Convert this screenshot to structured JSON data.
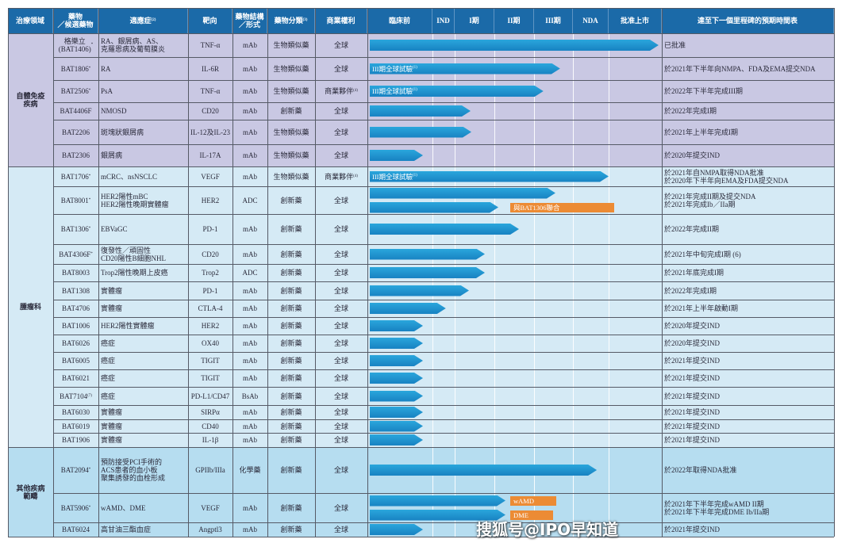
{
  "colors": {
    "header": "#1b6aa8",
    "autoimmune": "#c9c8e3",
    "oncology": "#d5eaf5",
    "other": "#b6ddf0",
    "bar": "#1f94d0",
    "tag": "#ec8b34"
  },
  "header": {
    "cols": [
      {
        "label": "治療領域",
        "sup": ""
      },
      {
        "label": "藥物\n／候選藥物",
        "sup": ""
      },
      {
        "label": "適應症",
        "sup": "(2)"
      },
      {
        "label": "靶向",
        "sup": ""
      },
      {
        "label": "藥物結構\n／形式",
        "sup": ""
      },
      {
        "label": "藥物分類",
        "sup": "(3)"
      },
      {
        "label": "商業權利",
        "sup": ""
      },
      {
        "label": "臨床前",
        "sup": ""
      },
      {
        "label": "IND",
        "sup": ""
      },
      {
        "label": "I期",
        "sup": ""
      },
      {
        "label": "II期",
        "sup": ""
      },
      {
        "label": "III期",
        "sup": ""
      },
      {
        "label": "NDA",
        "sup": ""
      },
      {
        "label": "批准上市",
        "sup": ""
      },
      {
        "label": "達至下一個里程碑的預期時間表",
        "sup": ""
      }
    ]
  },
  "groups": [
    {
      "area": "自體免疫\n疾病",
      "color_key": "autoimmune",
      "rows": [
        {
          "drug": "格樂立\n(BAT1406)",
          "sup": "*",
          "indication": "RA、銀屑病、AS、\n克羅恩病及葡萄膜炎",
          "target": "TNF-α",
          "structure": "mAb",
          "class": "生物類似藥",
          "rights": "全球",
          "rights_sup": "",
          "bars": [
            {
              "progress": 6.94,
              "label": "",
              "label_sup": ""
            }
          ],
          "tags": [],
          "timeline": "已批准"
        },
        {
          "drug": "BAT1806",
          "sup": "*",
          "indication": "RA",
          "target": "IL-6R",
          "structure": "mAb",
          "class": "生物類似藥",
          "rights": "全球",
          "rights_sup": "",
          "bars": [
            {
              "progress": 4.67,
              "label": "III期全球試驗",
              "label_sup": "(1)"
            }
          ],
          "tags": [],
          "timeline": "於2021年下半年向NMPA、FDA及EMA提交NDA"
        },
        {
          "drug": "BAT2506",
          "sup": "*",
          "indication": "PsA",
          "target": "TNF-α",
          "structure": "mAb",
          "class": "生物類似藥",
          "rights": "商業夥伴",
          "rights_sup": "(4)",
          "bars": [
            {
              "progress": 4.24,
              "label": "III期全球試驗",
              "label_sup": "(1)"
            }
          ],
          "tags": [],
          "timeline": "於2022年下半年完成III期"
        },
        {
          "drug": "BAT4406F",
          "sup": "",
          "indication": "NMOSD",
          "target": "CD20",
          "structure": "mAb",
          "class": "創新藥",
          "rights": "全球",
          "rights_sup": "",
          "bars": [
            {
              "progress": 2.4,
              "label": "",
              "label_sup": ""
            }
          ],
          "tags": [],
          "timeline": "於2022年完成I期"
        },
        {
          "drug": "BAT2206",
          "sup": "",
          "indication": "斑塊狀銀屑病",
          "target": "IL-12及IL-23",
          "structure": "mAb",
          "class": "生物類似藥",
          "rights": "全球",
          "rights_sup": "",
          "bars": [
            {
              "progress": 2.42,
              "label": "",
              "label_sup": ""
            }
          ],
          "tags": [],
          "timeline": "於2021年上半年完成I期"
        },
        {
          "drug": "BAT2306",
          "sup": "",
          "indication": "銀屑病",
          "target": "IL-17A",
          "structure": "mAb",
          "class": "生物類似藥",
          "rights": "全球",
          "rights_sup": "",
          "bars": [
            {
              "progress": 0.85,
              "label": "",
              "label_sup": ""
            }
          ],
          "tags": [],
          "timeline": "於2020年提交IND"
        }
      ]
    },
    {
      "area": "腫瘤科",
      "color_key": "oncology",
      "rows": [
        {
          "drug": "BAT1706",
          "sup": "*",
          "indication": "mCRC、nsNSCLC",
          "target": "VEGF",
          "structure": "mAb",
          "class": "生物類似藥",
          "rights": "商業夥伴",
          "rights_sup": "(4)",
          "bars": [
            {
              "progress": 6.0,
              "label": "III期全球試驗",
              "label_sup": "(1)"
            }
          ],
          "tags": [],
          "timeline": "於2021年自NMPA取得NDA批准\n於2020年下半年向EMA及FDA提交NDA"
        },
        {
          "drug": "BAT8001",
          "sup": "*",
          "indication": "HER2陽性mBC\nHER2陽性晚期實體瘤",
          "target": "HER2",
          "structure": "ADC",
          "class": "創新藥",
          "rights": "全球",
          "rights_sup": "",
          "bars": [
            {
              "progress": 4.55,
              "label": "",
              "label_sup": ""
            },
            {
              "progress": 3.1,
              "label": "",
              "label_sup": ""
            }
          ],
          "tags": [
            {
              "text": "與BAT1306聯合",
              "from": 3.4,
              "to": 6.1,
              "bar": 1
            }
          ],
          "timeline": "於2021年完成II期及提交NDA\n於2021年完成Ib／IIa期"
        },
        {
          "drug": "BAT1306",
          "sup": "*",
          "indication": "EBVaGC",
          "target": "PD-1",
          "structure": "mAb",
          "class": "創新藥",
          "rights": "全球",
          "rights_sup": "",
          "bars": [
            {
              "progress": 3.62,
              "label": "",
              "label_sup": ""
            }
          ],
          "tags": [],
          "timeline": "於2022年完成II期"
        },
        {
          "drug": "BAT4306F",
          "sup": "*",
          "indication": "復發性／頑固性\nCD20陽性B細胞NHL",
          "target": "CD20",
          "structure": "mAb",
          "class": "創新藥",
          "rights": "全球",
          "rights_sup": "",
          "bars": [
            {
              "progress": 2.76,
              "label": "",
              "label_sup": ""
            }
          ],
          "tags": [],
          "timeline": "於2021年中旬完成I期 (6)"
        },
        {
          "drug": "BAT8003",
          "sup": "",
          "indication": "Trop2陽性晚期上皮癌",
          "target": "Trop2",
          "structure": "ADC",
          "class": "創新藥",
          "rights": "全球",
          "rights_sup": "",
          "bars": [
            {
              "progress": 2.76,
              "label": "",
              "label_sup": ""
            }
          ],
          "tags": [],
          "timeline": "於2021年底完成I期"
        },
        {
          "drug": "BAT1308",
          "sup": "",
          "indication": "實體瘤",
          "target": "PD-1",
          "structure": "mAb",
          "class": "創新藥",
          "rights": "全球",
          "rights_sup": "",
          "bars": [
            {
              "progress": 2.36,
              "label": "",
              "label_sup": ""
            }
          ],
          "tags": [],
          "timeline": "於2022年完成I期"
        },
        {
          "drug": "BAT4706",
          "sup": "",
          "indication": "實體瘤",
          "target": "CTLA-4",
          "structure": "mAb",
          "class": "創新藥",
          "rights": "全球",
          "rights_sup": "",
          "bars": [
            {
              "progress": 1.6,
              "label": "",
              "label_sup": ""
            }
          ],
          "tags": [],
          "timeline": "於2021年上半年啟動I期"
        },
        {
          "drug": "BAT1006",
          "sup": "",
          "indication": "HER2陽性實體瘤",
          "target": "HER2",
          "structure": "mAb",
          "class": "創新藥",
          "rights": "全球",
          "rights_sup": "",
          "bars": [
            {
              "progress": 0.85,
              "label": "",
              "label_sup": ""
            }
          ],
          "tags": [],
          "timeline": "於2020年提交IND"
        },
        {
          "drug": "BAT6026",
          "sup": "",
          "indication": "癌症",
          "target": "OX40",
          "structure": "mAb",
          "class": "創新藥",
          "rights": "全球",
          "rights_sup": "",
          "bars": [
            {
              "progress": 0.85,
              "label": "",
              "label_sup": ""
            }
          ],
          "tags": [],
          "timeline": "於2020年提交IND"
        },
        {
          "drug": "BAT6005",
          "sup": "",
          "indication": "癌症",
          "target": "TIGIT",
          "structure": "mAb",
          "class": "創新藥",
          "rights": "全球",
          "rights_sup": "",
          "bars": [
            {
              "progress": 0.85,
              "label": "",
              "label_sup": ""
            }
          ],
          "tags": [],
          "timeline": "於2021年提交IND"
        },
        {
          "drug": "BAT6021",
          "sup": "",
          "indication": "癌症",
          "target": "TIGIT",
          "structure": "mAb",
          "class": "創新藥",
          "rights": "全球",
          "rights_sup": "",
          "bars": [
            {
              "progress": 0.85,
              "label": "",
              "label_sup": ""
            }
          ],
          "tags": [],
          "timeline": "於2021年提交IND"
        },
        {
          "drug": "BAT7104",
          "sup": "(7)",
          "indication": "癌症",
          "target": "PD-L1/CD47",
          "structure": "BsAb",
          "class": "創新藥",
          "rights": "全球",
          "rights_sup": "",
          "bars": [
            {
              "progress": 0.85,
              "label": "",
              "label_sup": ""
            }
          ],
          "tags": [],
          "timeline": "於2021年提交IND"
        },
        {
          "drug": "BAT6030",
          "sup": "",
          "indication": "實體瘤",
          "target": "SIRPα",
          "structure": "mAb",
          "class": "創新藥",
          "rights": "全球",
          "rights_sup": "",
          "bars": [
            {
              "progress": 0.85,
              "label": "",
              "label_sup": ""
            }
          ],
          "tags": [],
          "timeline": "於2021年提交IND"
        },
        {
          "drug": "BAT6019",
          "sup": "",
          "indication": "實體瘤",
          "target": "CD40",
          "structure": "mAb",
          "class": "創新藥",
          "rights": "全球",
          "rights_sup": "",
          "bars": [
            {
              "progress": 0.85,
              "label": "",
              "label_sup": ""
            }
          ],
          "tags": [],
          "timeline": "於2021年提交IND"
        },
        {
          "drug": "BAT1906",
          "sup": "",
          "indication": "實體瘤",
          "target": "IL-1β",
          "structure": "mAb",
          "class": "創新藥",
          "rights": "全球",
          "rights_sup": "",
          "bars": [
            {
              "progress": 0.85,
              "label": "",
              "label_sup": ""
            }
          ],
          "tags": [],
          "timeline": "於2021年提交IND"
        }
      ]
    },
    {
      "area": "其他疾病\n範疇",
      "color_key": "other",
      "rows": [
        {
          "drug": "BAT2094",
          "sup": "*",
          "indication": "預防接受PCI手術的\nACS患者的血小板\n聚集誘發的血栓形成",
          "target": "GPIIb/IIIa",
          "structure": "化學藥",
          "class": "創新藥",
          "rights": "全球",
          "rights_sup": "",
          "bars": [
            {
              "progress": 5.67,
              "label": "",
              "label_sup": ""
            }
          ],
          "tags": [],
          "timeline": "於2022年取得NDA批准"
        },
        {
          "drug": "BAT5906",
          "sup": "*",
          "indication": "wAMD、DME",
          "target": "VEGF",
          "structure": "mAb",
          "class": "創新藥",
          "rights": "全球",
          "rights_sup": "",
          "bars": [
            {
              "progress": 3.28,
              "label": "",
              "label_sup": ""
            },
            {
              "progress": 3.28,
              "label": "",
              "label_sup": ""
            }
          ],
          "tags": [
            {
              "text": "wAMD",
              "from": 3.4,
              "to": 4.57,
              "bar": 0
            },
            {
              "text": "DME",
              "from": 3.4,
              "to": 4.49,
              "bar": 1
            }
          ],
          "timeline": "於2021年下半年完成wAMD II期\n於2021年下半年完成DME Ib/IIa期"
        },
        {
          "drug": "BAT6024",
          "sup": "",
          "indication": "高甘油三酯血症",
          "target": "Angptl3",
          "structure": "mAb",
          "class": "創新藥",
          "rights": "全球",
          "rights_sup": "",
          "bars": [
            {
              "progress": 0.85,
              "label": "",
              "label_sup": ""
            }
          ],
          "tags": [],
          "timeline": "於2021年提交IND"
        }
      ]
    }
  ],
  "watermark": "搜狐号@IPO早知道"
}
